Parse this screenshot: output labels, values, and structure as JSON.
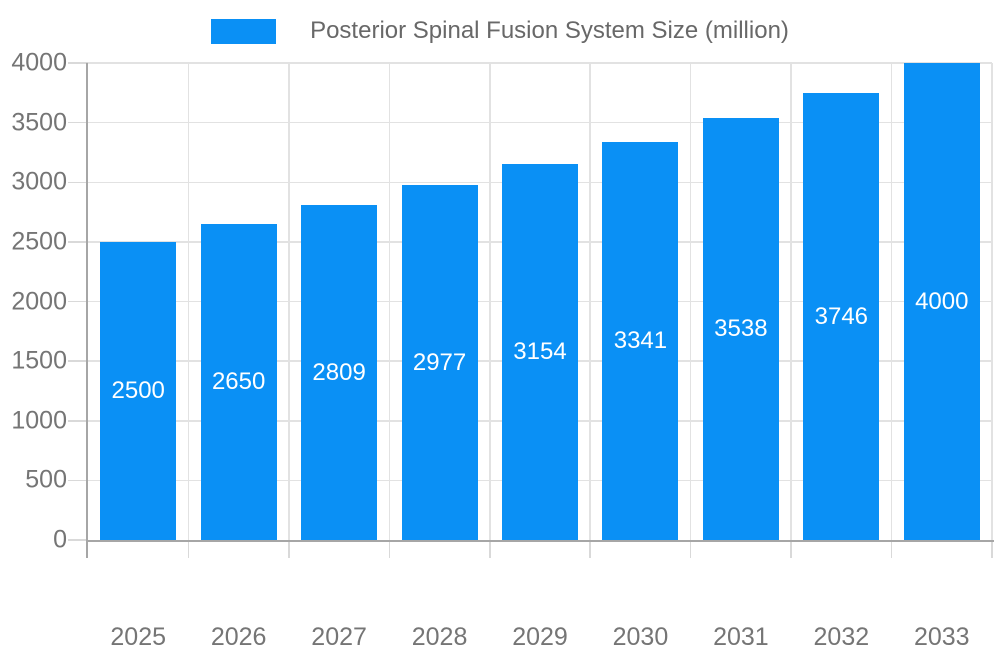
{
  "legend": {
    "label": "Posterior Spinal Fusion System Size (million)"
  },
  "chart_data": {
    "type": "bar",
    "title": "Posterior Spinal Fusion System Size (million)",
    "categories": [
      "2025",
      "2026",
      "2027",
      "2028",
      "2029",
      "2030",
      "2031",
      "2032",
      "2033"
    ],
    "values": [
      2500,
      2650,
      2809,
      2977,
      3154,
      3341,
      3538,
      3746,
      4000
    ],
    "xlabel": "",
    "ylabel": "",
    "ylim": [
      0,
      4000
    ],
    "yticks": [
      0,
      500,
      1000,
      1500,
      2000,
      2500,
      3000,
      3500,
      4000
    ],
    "grid": true,
    "legend_position": "top-center",
    "colors": {
      "bar": "#0a90f5",
      "bar_label": "#ffffff",
      "tick_label": "#757575",
      "legend_text": "#686868",
      "grid": "#e2e2e2",
      "axis": "#a6a6a6",
      "tick": "#d9d9d9",
      "background": "#ffffff"
    }
  }
}
